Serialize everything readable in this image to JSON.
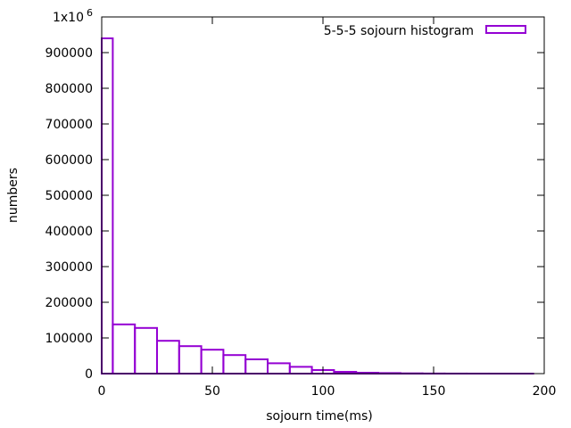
{
  "chart_data": {
    "type": "bar",
    "xlabel": "sojourn time(ms)",
    "ylabel": "numbers",
    "xlim": [
      0,
      200
    ],
    "ylim": [
      0,
      1000000
    ],
    "x_ticks": [
      "0",
      "50",
      "100",
      "150",
      "200"
    ],
    "y_ticks": [
      "0",
      "100000",
      "200000",
      "300000",
      "400000",
      "500000",
      "600000",
      "700000",
      "800000",
      "900000"
    ],
    "y_top_tick": {
      "mantissa": "1x10",
      "exponent": "6"
    },
    "grid": false,
    "legend_position": "top-right",
    "bin_width": 10,
    "series": [
      {
        "name": "5-5-5 sojourn histogram",
        "color": "#9400d3",
        "bins": [
          {
            "x": 0,
            "y": 940000
          },
          {
            "x": 10,
            "y": 138000
          },
          {
            "x": 20,
            "y": 128000
          },
          {
            "x": 30,
            "y": 92000
          },
          {
            "x": 40,
            "y": 77000
          },
          {
            "x": 50,
            "y": 67000
          },
          {
            "x": 60,
            "y": 52000
          },
          {
            "x": 70,
            "y": 40000
          },
          {
            "x": 80,
            "y": 29000
          },
          {
            "x": 90,
            "y": 19000
          },
          {
            "x": 100,
            "y": 10000
          },
          {
            "x": 110,
            "y": 5000
          },
          {
            "x": 120,
            "y": 2500
          },
          {
            "x": 130,
            "y": 1500
          },
          {
            "x": 140,
            "y": 700
          },
          {
            "x": 150,
            "y": 300
          },
          {
            "x": 160,
            "y": 150
          },
          {
            "x": 170,
            "y": 80
          },
          {
            "x": 180,
            "y": 40
          },
          {
            "x": 190,
            "y": 20
          }
        ]
      }
    ]
  }
}
